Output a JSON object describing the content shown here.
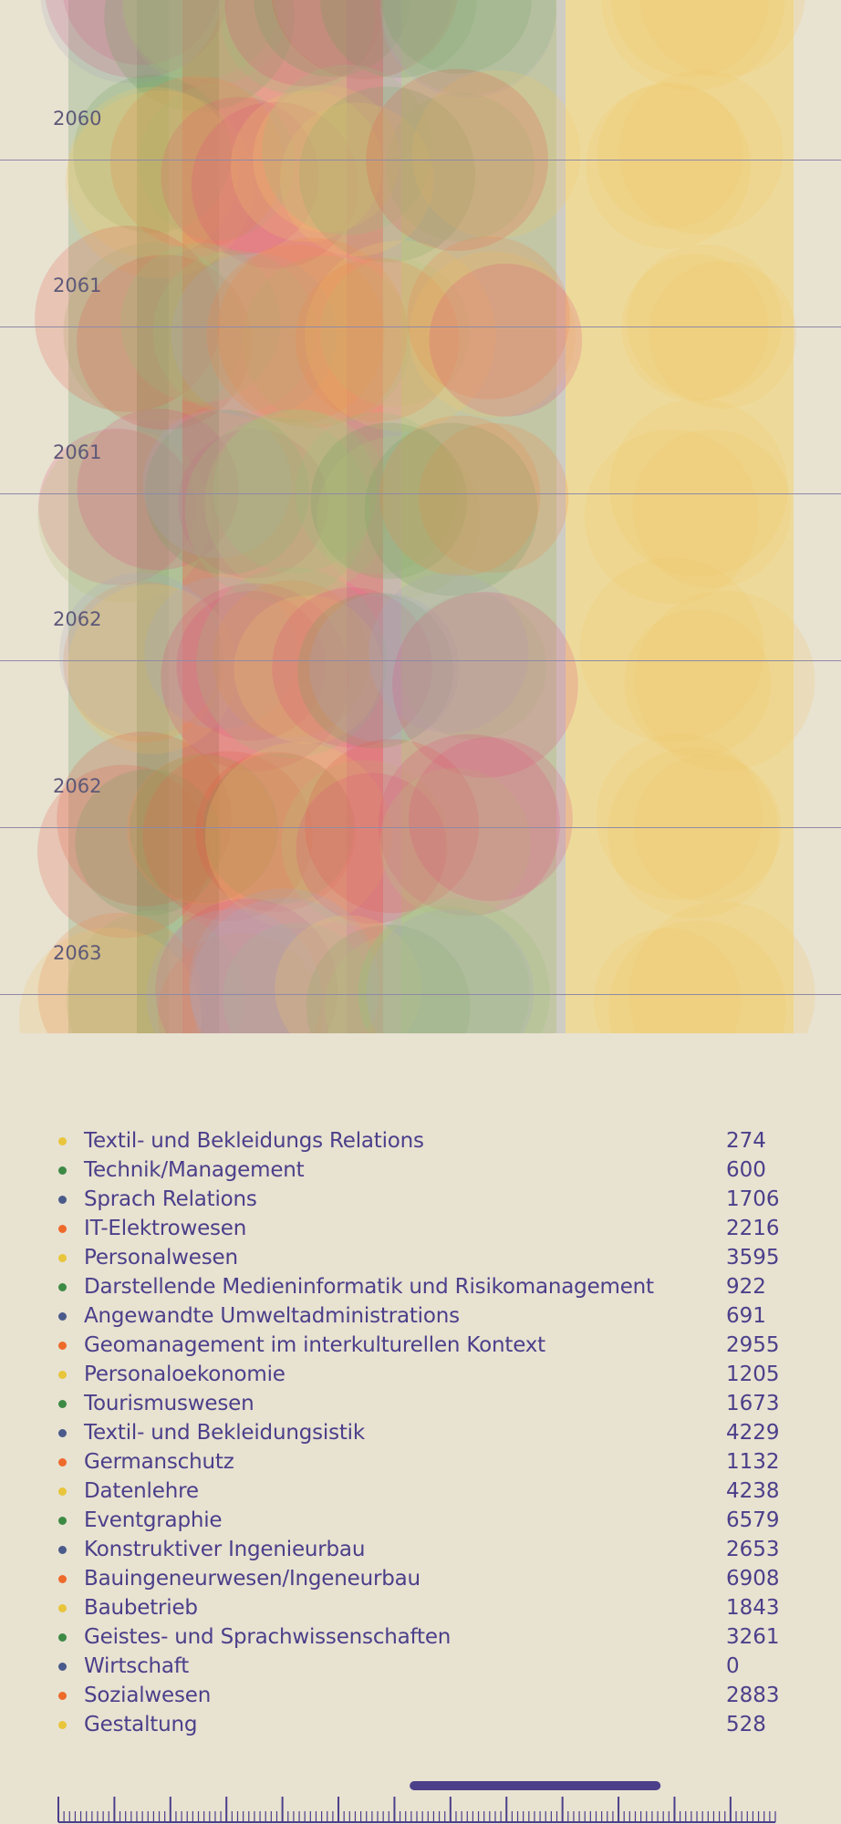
{
  "chart_data": {
    "type": "scatter",
    "rows": [
      {
        "label": "2060"
      },
      {
        "label": "2061"
      },
      {
        "label": "2061"
      },
      {
        "label": "2062"
      },
      {
        "label": "2062"
      },
      {
        "label": "2063"
      }
    ],
    "palette": [
      "#e8c53a",
      "#3d8a45",
      "#4a5a8a",
      "#ee6a2a"
    ]
  },
  "legend": {
    "items": [
      {
        "label": "Textil- und Bekleidungs Relations",
        "value": "274",
        "color": "#e8c53a"
      },
      {
        "label": "Technik/Management",
        "value": "600",
        "color": "#3d8a45"
      },
      {
        "label": "Sprach Relations",
        "value": "1706",
        "color": "#4a5a8a"
      },
      {
        "label": "IT-Elektrowesen",
        "value": "2216",
        "color": "#ee6a2a"
      },
      {
        "label": "Personalwesen",
        "value": "3595",
        "color": "#e8c53a"
      },
      {
        "label": "Darstellende Medieninformatik und Risikomanagement",
        "value": "922",
        "color": "#3d8a45"
      },
      {
        "label": "Angewandte Umweltadministrations",
        "value": "691",
        "color": "#4a5a8a"
      },
      {
        "label": "Geomanagement im interkulturellen Kontext",
        "value": "2955",
        "color": "#ee6a2a"
      },
      {
        "label": "Personaloekonomie",
        "value": "1205",
        "color": "#e8c53a"
      },
      {
        "label": "Tourismuswesen",
        "value": "1673",
        "color": "#3d8a45"
      },
      {
        "label": "Textil- und Bekleidungsistik",
        "value": "4229",
        "color": "#4a5a8a"
      },
      {
        "label": "Germanschutz",
        "value": "1132",
        "color": "#ee6a2a"
      },
      {
        "label": "Datenlehre",
        "value": "4238",
        "color": "#e8c53a"
      },
      {
        "label": "Eventgraphie",
        "value": "6579",
        "color": "#3d8a45"
      },
      {
        "label": "Konstruktiver Ingenieurbau",
        "value": "2653",
        "color": "#4a5a8a"
      },
      {
        "label": "Bauingeneurwesen/Ingeneurbau",
        "value": "6908",
        "color": "#ee6a2a"
      },
      {
        "label": "Baubetrieb",
        "value": "1843",
        "color": "#e8c53a"
      },
      {
        "label": "Geistes- und Sprachwissenschaften",
        "value": "3261",
        "color": "#3d8a45"
      },
      {
        "label": "Wirtschaft",
        "value": "0",
        "color": "#4a5a8a"
      },
      {
        "label": "Sozialwesen",
        "value": "2883",
        "color": "#ee6a2a"
      },
      {
        "label": "Gestaltung",
        "value": "528",
        "color": "#e8c53a"
      }
    ]
  },
  "timeline": {
    "range_fraction": [
      0.49,
      0.84
    ],
    "accent_color": "#4b3f8a"
  }
}
